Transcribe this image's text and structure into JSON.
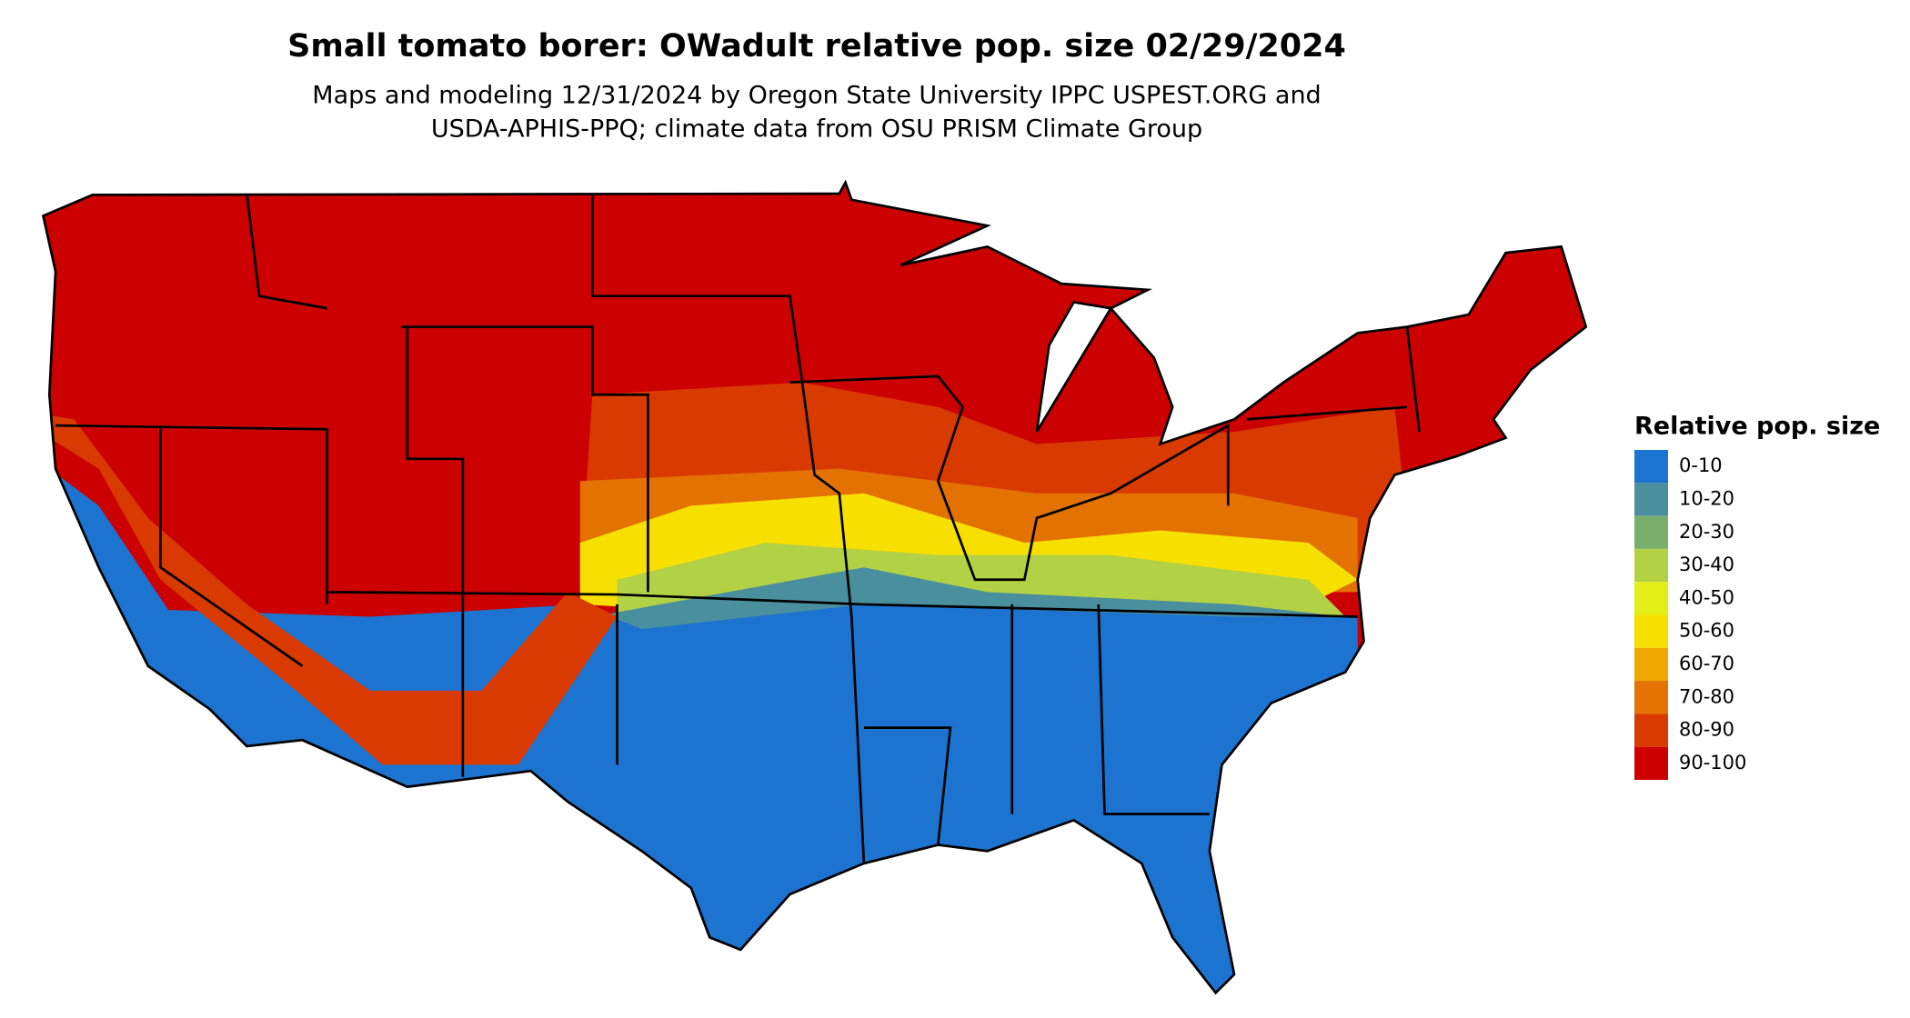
{
  "title": "Small tomato borer: OWadult relative pop. size 02/29/2024",
  "subtitle": [
    "Maps and modeling 12/31/2024 by Oregon State University IPPC USPEST.ORG and",
    "USDA-APHIS-PPQ; climate data from OSU PRISM Climate Group"
  ],
  "legend": {
    "title": "Relative pop. size",
    "items": [
      {
        "label": "0-10",
        "color": "#1c74d0"
      },
      {
        "label": "10-20",
        "color": "#4a8f9e"
      },
      {
        "label": "20-30",
        "color": "#7aae6c"
      },
      {
        "label": "30-40",
        "color": "#b3d144"
      },
      {
        "label": "40-50",
        "color": "#e4ef18"
      },
      {
        "label": "50-60",
        "color": "#f7e000"
      },
      {
        "label": "60-70",
        "color": "#efa800"
      },
      {
        "label": "70-80",
        "color": "#e47200"
      },
      {
        "label": "80-90",
        "color": "#d93a00"
      },
      {
        "label": "90-100",
        "color": "#cc0000"
      }
    ]
  }
}
